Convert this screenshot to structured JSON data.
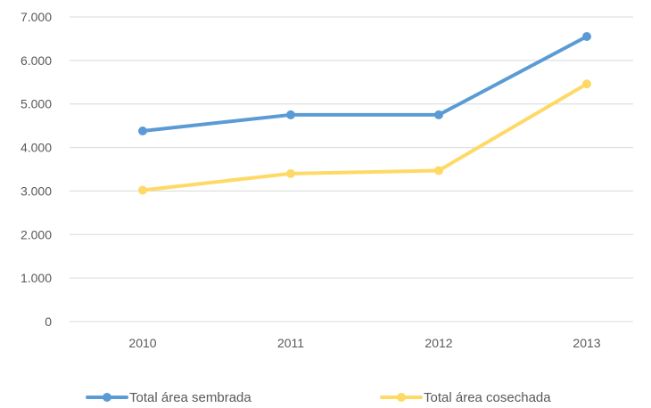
{
  "chart_data": {
    "type": "line",
    "title": "",
    "xlabel": "",
    "ylabel": "",
    "categories": [
      "2010",
      "2011",
      "2012",
      "2013"
    ],
    "y_ticks": [
      "0",
      "1.000",
      "2.000",
      "3.000",
      "4.000",
      "5.000",
      "6.000",
      "7.000"
    ],
    "ylim": [
      0,
      7000
    ],
    "grid": true,
    "legend_position": "bottom",
    "series": [
      {
        "name": "Total área sembrada",
        "color": "#5B9BD5",
        "values": [
          4380,
          4750,
          4750,
          6550
        ]
      },
      {
        "name": "Total área cosechada",
        "color": "#FFD966",
        "values": [
          3020,
          3400,
          3470,
          5460
        ]
      }
    ]
  }
}
